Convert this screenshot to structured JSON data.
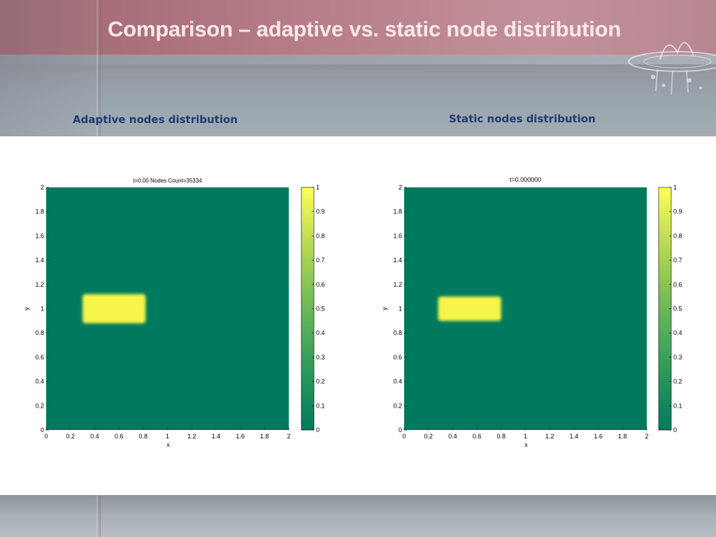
{
  "slide": {
    "title": "Comparison – adaptive vs. static node distribution",
    "left_caption": "Adaptive nodes distribution",
    "right_caption": "Static nodes distribution"
  },
  "colors": {
    "field_background": "#007a5e",
    "blob": "#f7f54a",
    "title_text": "#fae8ea",
    "caption_text": "#1d3c72"
  },
  "chart_data": [
    {
      "type": "heatmap",
      "title": "t=0.00 Nodes Count=35334",
      "xlabel": "x",
      "ylabel": "y",
      "xlim": [
        0,
        2
      ],
      "ylim": [
        0,
        2
      ],
      "x_ticks": [
        "0",
        "0.2",
        "0.4",
        "0.6",
        "0.8",
        "1",
        "1.2",
        "1.4",
        "1.6",
        "1.8",
        "2"
      ],
      "y_ticks": [
        "0",
        "0.2",
        "0.4",
        "0.6",
        "0.8",
        "1",
        "1.2",
        "1.4",
        "1.6",
        "1.8",
        "2"
      ],
      "background_value": 0,
      "blob": {
        "value": 1,
        "x": [
          0.3,
          0.82
        ],
        "y": [
          0.88,
          1.12
        ]
      },
      "colorbar": {
        "range": [
          0,
          1
        ],
        "ticks": [
          "0",
          "0.1",
          "0.2",
          "0.3",
          "0.4",
          "0.5",
          "0.6",
          "0.7",
          "0.8",
          "0.9",
          "1"
        ]
      }
    },
    {
      "type": "heatmap",
      "title": "t=0.000000",
      "xlabel": "x",
      "ylabel": "y",
      "xlim": [
        0,
        2
      ],
      "ylim": [
        0,
        2
      ],
      "x_ticks": [
        "0",
        "0.2",
        "0.4",
        "0.6",
        "0.8",
        "1",
        "1.2",
        "1.4",
        "1.6",
        "1.8",
        "2"
      ],
      "y_ticks": [
        "0",
        "0.2",
        "0.4",
        "0.6",
        "0.8",
        "1",
        "1.2",
        "1.4",
        "1.6",
        "1.8",
        "2"
      ],
      "background_value": 0,
      "blob": {
        "value": 1,
        "x": [
          0.28,
          0.8
        ],
        "y": [
          0.9,
          1.1
        ]
      },
      "colorbar": {
        "range": [
          0,
          1
        ],
        "ticks": [
          "0",
          "0.1",
          "0.2",
          "0.3",
          "0.4",
          "0.5",
          "0.6",
          "0.7",
          "0.8",
          "0.9",
          "1"
        ]
      }
    }
  ]
}
